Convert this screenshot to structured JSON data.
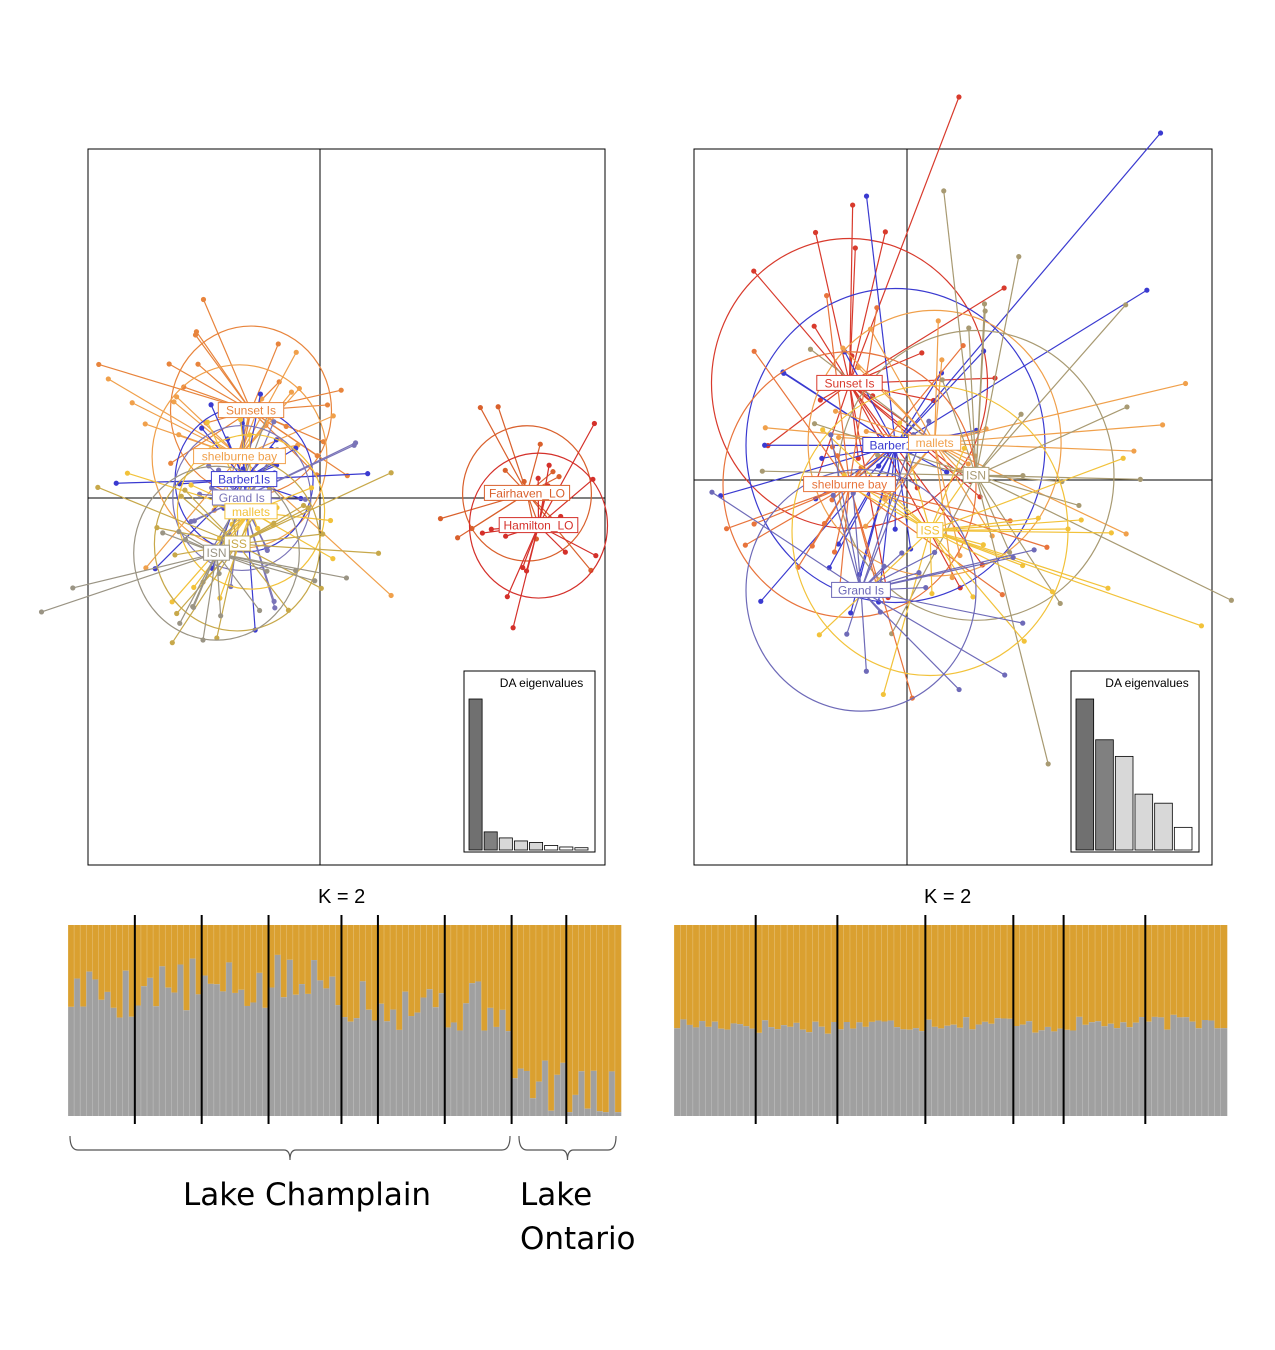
{
  "chart_data": [
    {
      "type": "scatter",
      "subtype": "DAPC scatter (discriminant analysis of principal components)",
      "panel": "left",
      "axes_crosshair": true,
      "groups": [
        {
          "name": "Sunset Is",
          "color": "#e8843c",
          "centroid": [
            -0.3,
            0.38
          ],
          "spread": 0.35,
          "n": 22
        },
        {
          "name": "shelburne bay",
          "color": "#f0a04b",
          "centroid": [
            -0.35,
            0.18
          ],
          "spread": 0.38,
          "n": 22
        },
        {
          "name": "Barber1Is",
          "color": "#3a3ad0",
          "centroid": [
            -0.33,
            0.08
          ],
          "spread": 0.3,
          "n": 22
        },
        {
          "name": "Grand Is",
          "color": "#7a74b8",
          "centroid": [
            -0.34,
            0.0
          ],
          "spread": 0.3,
          "n": 20
        },
        {
          "name": "mallets",
          "color": "#f2c23a",
          "centroid": [
            -0.3,
            -0.06
          ],
          "spread": 0.32,
          "n": 20
        },
        {
          "name": "ISS",
          "color": "#c7a84a",
          "centroid": [
            -0.36,
            -0.2
          ],
          "spread": 0.36,
          "n": 20
        },
        {
          "name": "ISN",
          "color": "#9a9484",
          "centroid": [
            -0.45,
            -0.24
          ],
          "spread": 0.36,
          "n": 20
        },
        {
          "name": "Fairhaven_LO",
          "color": "#d9602c",
          "centroid": [
            0.9,
            0.02
          ],
          "spread": 0.28,
          "n": 16
        },
        {
          "name": "Hamilton_LO",
          "color": "#d4302a",
          "centroid": [
            0.95,
            -0.12
          ],
          "spread": 0.3,
          "n": 16
        }
      ],
      "inset": {
        "title": "DA eigenvalues",
        "values": [
          100,
          12,
          8,
          6,
          5,
          3,
          2,
          1.5
        ]
      }
    },
    {
      "type": "scatter",
      "subtype": "DAPC scatter (discriminant analysis of principal components)",
      "panel": "right",
      "axes_crosshair": true,
      "groups": [
        {
          "name": "Sunset Is",
          "color": "#d83a2c",
          "centroid": [
            -0.25,
            0.42
          ],
          "spread": 0.6,
          "n": 24
        },
        {
          "name": "Barber1Is",
          "color": "#3a3ad0",
          "centroid": [
            -0.05,
            0.15
          ],
          "spread": 0.65,
          "n": 24
        },
        {
          "name": "mallets",
          "color": "#f0a04b",
          "centroid": [
            0.12,
            0.16
          ],
          "spread": 0.55,
          "n": 22
        },
        {
          "name": "ISN",
          "color": "#a89a72",
          "centroid": [
            0.3,
            0.02
          ],
          "spread": 0.6,
          "n": 22
        },
        {
          "name": "shelburne bay",
          "color": "#e8743c",
          "centroid": [
            -0.25,
            -0.02
          ],
          "spread": 0.55,
          "n": 22
        },
        {
          "name": "ISS",
          "color": "#f2c23a",
          "centroid": [
            0.1,
            -0.22
          ],
          "spread": 0.6,
          "n": 22
        },
        {
          "name": "Grand Is",
          "color": "#6e6ab8",
          "centroid": [
            -0.2,
            -0.48
          ],
          "spread": 0.5,
          "n": 20
        }
      ],
      "inset": {
        "title": "DA eigenvalues",
        "values": [
          100,
          73,
          62,
          37,
          31,
          15
        ]
      }
    },
    {
      "type": "bar",
      "subtype": "stacked admixture (STRUCTURE) plot",
      "panel": "left",
      "title": "K = 2",
      "colors": [
        "#a0a0a0",
        "#daa030"
      ],
      "population_sizes": [
        11,
        11,
        11,
        12,
        6,
        11,
        11,
        9,
        9
      ],
      "cluster2_mean_by_population": [
        0.65,
        0.68,
        0.66,
        0.7,
        0.62,
        0.6,
        0.57,
        0.16,
        0.09
      ],
      "brackets": [
        "Lake Champlain",
        "Lake Ontario"
      ]
    },
    {
      "type": "bar",
      "subtype": "stacked admixture (STRUCTURE) plot",
      "panel": "right",
      "title": "K = 2",
      "colors": [
        "#a0a0a0",
        "#daa030"
      ],
      "population_sizes": [
        13,
        13,
        14,
        14,
        8,
        13,
        13
      ],
      "cluster2_mean_by_population": [
        0.48,
        0.47,
        0.48,
        0.49,
        0.47,
        0.48,
        0.49
      ]
    }
  ],
  "labels": {
    "k_left": "K = 2",
    "k_right": "K = 2",
    "lake_champlain": "Lake Champlain",
    "lake_ontario_1": "Lake",
    "lake_ontario_2": "Ontario"
  }
}
